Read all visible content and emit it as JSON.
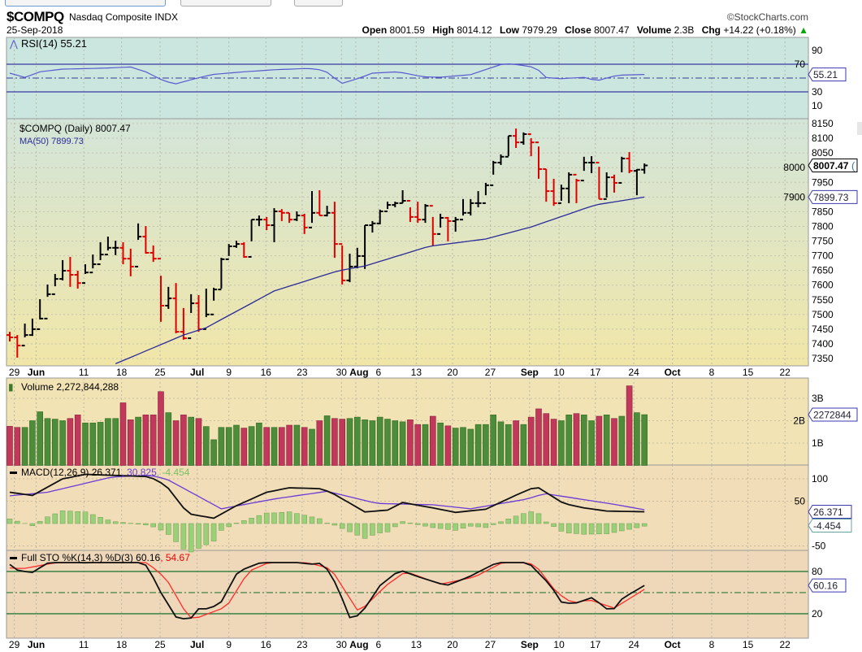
{
  "header": {
    "symbol": "$COMPQ",
    "name": "Nasdaq Composite INDX",
    "copyright": "©StockCharts.com",
    "date": "25-Sep-2018",
    "open_label": "Open",
    "open": "8001.59",
    "high_label": "High",
    "high": "8014.12",
    "low_label": "Low",
    "low": "7979.29",
    "close_label": "Close",
    "close": "8007.47",
    "volume_label": "Volume",
    "volume": "2.3B",
    "chg_label": "Chg",
    "chg": "+14.22 (+0.18%)",
    "chg_arrow": "▲"
  },
  "panels": {
    "rsi_label": "RSI(14) 55.21",
    "price_label": "$COMPQ (Daily) 8007.47",
    "ma_label": "MA(50) 7899.73",
    "volume_label": "Volume 2,272,844,288",
    "macd_label": "MACD(12,26,9) 26.371",
    "macd_signal": ", 30.825",
    "macd_hist": ", -4.454",
    "sto_label": "Full STO %K(14,3) %D(3) 60.16",
    "sto_d": ", 54.67"
  },
  "colors": {
    "up": "#000000",
    "down": "#e00000",
    "ma": "#2b2b9a",
    "rsi": "#5a5ad0",
    "vol_up": "#4c8c3a",
    "vol_down": "#c0385a",
    "macd": "#111111",
    "signal": "#6a3ad8",
    "hist": "#9ccf7a",
    "k": "#111111",
    "d": "#ff2a2a"
  },
  "chart_data": {
    "type": "ohlc",
    "title": "$COMPQ Nasdaq Composite INDX",
    "x_ticks": [
      {
        "label": "29",
        "bar": 1.6,
        "month": false
      },
      {
        "label": "Jun",
        "bar": 4.5,
        "month": true
      },
      {
        "label": "11",
        "bar": 10.8,
        "month": false
      },
      {
        "label": "18",
        "bar": 15.8,
        "month": false
      },
      {
        "label": "25",
        "bar": 20.9,
        "month": false
      },
      {
        "label": "Jul",
        "bar": 25.8,
        "month": true
      },
      {
        "label": "9",
        "bar": 30,
        "month": false
      },
      {
        "label": "16",
        "bar": 34.9,
        "month": false
      },
      {
        "label": "23",
        "bar": 39.7,
        "month": false
      },
      {
        "label": "30",
        "bar": 44.9,
        "month": false
      },
      {
        "label": "Aug",
        "bar": 46.8,
        "month": true
      },
      {
        "label": "6",
        "bar": 49.8,
        "month": false
      },
      {
        "label": "13",
        "bar": 54.8,
        "month": false
      },
      {
        "label": "20",
        "bar": 59.6,
        "month": false
      },
      {
        "label": "27",
        "bar": 64.6,
        "month": false
      },
      {
        "label": "Sep",
        "bar": 69.8,
        "month": true
      },
      {
        "label": "10",
        "bar": 73.7,
        "month": false
      },
      {
        "label": "17",
        "bar": 78.5,
        "month": false
      },
      {
        "label": "24",
        "bar": 83.6,
        "month": false
      },
      {
        "label": "Oct",
        "bar": 88.7,
        "month": true
      },
      {
        "label": "8",
        "bar": 93.9,
        "month": false
      },
      {
        "label": "15",
        "bar": 98.7,
        "month": false
      },
      {
        "label": "22",
        "bar": 103.6,
        "month": false
      }
    ],
    "price": {
      "ylim": [
        7335,
        8165
      ],
      "ticks": [
        "7350",
        "7400",
        "7450",
        "7500",
        "7550",
        "7600",
        "7650",
        "7700",
        "7750",
        "7800",
        "7850",
        "7900",
        "7950",
        "8000",
        "8050",
        "8100",
        "8150"
      ],
      "first_open": 7430,
      "hlc": [
        [
          7441,
          7408,
          7422
        ],
        [
          7430,
          7353,
          7394
        ],
        [
          7469,
          7422,
          7430
        ],
        [
          7486,
          7427,
          7450
        ],
        [
          7552,
          7483,
          7486
        ],
        [
          7602,
          7560,
          7569
        ],
        [
          7638,
          7596,
          7621
        ],
        [
          7685,
          7616,
          7649
        ],
        [
          7696,
          7594,
          7635
        ],
        [
          7649,
          7588,
          7607
        ],
        [
          7671,
          7638,
          7643
        ],
        [
          7704,
          7657,
          7671
        ],
        [
          7746,
          7685,
          7704
        ],
        [
          7765,
          7718,
          7727
        ],
        [
          7751,
          7702,
          7727
        ],
        [
          7746,
          7671,
          7690
        ],
        [
          7724,
          7630,
          7663
        ],
        [
          7810,
          7754,
          7765
        ],
        [
          7801,
          7707,
          7710
        ],
        [
          7735,
          7679,
          7690
        ],
        [
          7632,
          7475,
          7530
        ],
        [
          7594,
          7519,
          7555
        ],
        [
          7607,
          7436,
          7441
        ],
        [
          7522,
          7414,
          7419
        ],
        [
          7569,
          7505,
          7538
        ],
        [
          7566,
          7441,
          7450
        ],
        [
          7588,
          7491,
          7500
        ],
        [
          7591,
          7547,
          7585
        ],
        [
          7693,
          7588,
          7688
        ],
        [
          7740,
          7699,
          7732
        ],
        [
          7751,
          7727,
          7740
        ],
        [
          7746,
          7693,
          7696
        ],
        [
          7823,
          7749,
          7823
        ],
        [
          7837,
          7801,
          7823
        ],
        [
          7832,
          7787,
          7804
        ],
        [
          7862,
          7746,
          7851
        ],
        [
          7859,
          7818,
          7846
        ],
        [
          7846,
          7812,
          7823
        ],
        [
          7851,
          7818,
          7837
        ],
        [
          7843,
          7774,
          7796
        ],
        [
          7920,
          7812,
          7846
        ],
        [
          7923,
          7837,
          7837
        ],
        [
          7870,
          7834,
          7846
        ],
        [
          7884,
          7693,
          7740
        ],
        [
          7735,
          7602,
          7616
        ],
        [
          7707,
          7610,
          7663
        ],
        [
          7727,
          7657,
          7699
        ],
        [
          7804,
          7655,
          7804
        ],
        [
          7818,
          7779,
          7810
        ],
        [
          7857,
          7807,
          7851
        ],
        [
          7884,
          7859,
          7873
        ],
        [
          7884,
          7865,
          7879
        ],
        [
          7923,
          7879,
          7887
        ],
        [
          7865,
          7815,
          7832
        ],
        [
          7884,
          7812,
          7823
        ],
        [
          7876,
          7812,
          7870
        ],
        [
          7832,
          7732,
          7774
        ],
        [
          7843,
          7796,
          7829
        ],
        [
          7832,
          7749,
          7818
        ],
        [
          7832,
          7782,
          7823
        ],
        [
          7893,
          7837,
          7846
        ],
        [
          7893,
          7837,
          7879
        ],
        [
          7920,
          7865,
          7879
        ],
        [
          7948,
          7906,
          7940
        ],
        [
          8023,
          7976,
          8017
        ],
        [
          8045,
          8009,
          8037
        ],
        [
          8108,
          8039,
          8108
        ],
        [
          8133,
          8067,
          8086
        ],
        [
          8120,
          8078,
          8114
        ],
        [
          8100,
          8039,
          8086
        ],
        [
          8072,
          7962,
          7995
        ],
        [
          7995,
          7884,
          7920
        ],
        [
          7962,
          7870,
          7879
        ],
        [
          7942,
          7887,
          7929
        ],
        [
          7984,
          7879,
          7976
        ],
        [
          7962,
          7879,
          7956
        ],
        [
          8037,
          7989,
          8017
        ],
        [
          8039,
          7981,
          8017
        ],
        [
          8003,
          7893,
          7893
        ],
        [
          7984,
          7898,
          7967
        ],
        [
          7976,
          7915,
          7948
        ],
        [
          8037,
          7984,
          8031
        ],
        [
          8053,
          7981,
          7989
        ],
        [
          7995,
          7906,
          7993
        ],
        [
          8014.12,
          7979.29,
          8007.47
        ]
      ],
      "ma50_points": [
        [
          14.8,
          7330
        ],
        [
          24,
          7430
        ],
        [
          27,
          7455
        ],
        [
          36,
          7580
        ],
        [
          44.5,
          7649
        ],
        [
          48,
          7665
        ],
        [
          56.5,
          7732
        ],
        [
          64,
          7757
        ],
        [
          70,
          7798
        ],
        [
          78.5,
          7873
        ],
        [
          85,
          7899.73
        ]
      ],
      "last_badge": "8007.47",
      "ma_badge": "7899.73"
    },
    "rsi": {
      "ticks": [
        "90",
        "70",
        "30",
        "10"
      ],
      "points": [
        [
          1,
          57
        ],
        [
          3,
          51
        ],
        [
          5,
          59
        ],
        [
          8,
          63
        ],
        [
          12.6,
          64
        ],
        [
          17,
          66
        ],
        [
          19,
          59
        ],
        [
          21,
          48
        ],
        [
          22.8,
          41
        ],
        [
          25.5,
          49
        ],
        [
          27.7,
          55
        ],
        [
          32,
          59
        ],
        [
          36,
          62
        ],
        [
          40.6,
          64
        ],
        [
          42.7,
          61
        ],
        [
          44.9,
          42
        ],
        [
          47,
          49
        ],
        [
          49,
          57
        ],
        [
          52.4,
          59
        ],
        [
          55.6,
          52
        ],
        [
          57.8,
          51
        ],
        [
          62,
          55
        ],
        [
          64.2,
          63
        ],
        [
          66.4,
          71
        ],
        [
          68.5,
          69
        ],
        [
          70.7,
          65
        ],
        [
          71.8,
          51
        ],
        [
          73.9,
          49
        ],
        [
          77,
          51
        ],
        [
          78.7,
          46
        ],
        [
          81.4,
          54
        ],
        [
          85,
          55.21
        ]
      ],
      "badge": "55.21"
    },
    "volume": {
      "unit": "billions",
      "ticks": [
        "3B",
        "2B",
        "1B"
      ],
      "values": [
        1.75,
        1.7,
        1.7,
        2.0,
        2.4,
        2.1,
        2.07,
        2.0,
        2.1,
        2.26,
        1.9,
        1.9,
        1.93,
        2.1,
        2.1,
        2.8,
        2.04,
        2.16,
        2.26,
        2.26,
        3.3,
        2.36,
        2.0,
        2.26,
        2.16,
        2.1,
        1.74,
        1.15,
        1.7,
        1.7,
        1.8,
        1.67,
        1.74,
        1.9,
        1.7,
        1.7,
        1.7,
        1.8,
        1.8,
        1.7,
        1.62,
        2.0,
        2.22,
        2.1,
        2.07,
        2.1,
        2.16,
        2.04,
        2.0,
        2.16,
        2.07,
        2.0,
        1.95,
        2.04,
        1.83,
        1.83,
        2.2,
        1.9,
        1.77,
        1.67,
        1.7,
        1.62,
        1.83,
        1.83,
        2.26,
        1.95,
        1.83,
        2.0,
        1.83,
        2.16,
        2.53,
        2.32,
        2.07,
        2.0,
        2.26,
        2.32,
        2.26,
        2.0,
        2.2,
        2.26,
        2.1,
        2.2,
        3.56,
        2.36,
        2.27
      ],
      "badge": "2272844"
    },
    "macd": {
      "ticks": [
        "100",
        "50",
        "-50"
      ],
      "macd_points": [
        [
          1,
          70
        ],
        [
          4,
          63
        ],
        [
          8,
          100
        ],
        [
          11,
          110
        ],
        [
          19.5,
          105
        ],
        [
          21.7,
          85
        ],
        [
          24.6,
          22
        ],
        [
          28,
          12
        ],
        [
          31,
          40
        ],
        [
          35,
          70
        ],
        [
          38,
          80
        ],
        [
          42,
          78
        ],
        [
          43.5,
          70
        ],
        [
          48,
          26
        ],
        [
          51,
          30
        ],
        [
          53,
          47
        ],
        [
          57,
          35
        ],
        [
          60,
          25
        ],
        [
          64,
          32
        ],
        [
          67.8,
          62
        ],
        [
          70.7,
          83
        ],
        [
          74.3,
          45
        ],
        [
          77,
          35
        ],
        [
          80,
          28
        ],
        [
          85,
          26.371
        ]
      ],
      "signal_points": [
        [
          1,
          62
        ],
        [
          6,
          70
        ],
        [
          14.5,
          104
        ],
        [
          19.5,
          108
        ],
        [
          21.7,
          100
        ],
        [
          29,
          33
        ],
        [
          36,
          55
        ],
        [
          43,
          72
        ],
        [
          49.6,
          45
        ],
        [
          57,
          42
        ],
        [
          62,
          33
        ],
        [
          69.5,
          55
        ],
        [
          71.8,
          67
        ],
        [
          81,
          43
        ],
        [
          85,
          30.825
        ]
      ],
      "badge_macd": "26.371",
      "badge_hist": "-4.454"
    },
    "sto": {
      "ticks": [
        "80",
        "20"
      ],
      "k_points": [
        [
          1,
          90
        ],
        [
          2,
          82
        ],
        [
          3.9,
          78
        ],
        [
          5.4,
          88
        ],
        [
          6.8,
          97
        ],
        [
          9.4,
          96
        ],
        [
          11.2,
          92
        ],
        [
          13.4,
          96
        ],
        [
          17.4,
          96
        ],
        [
          19.2,
          88
        ],
        [
          21,
          50
        ],
        [
          23.2,
          12
        ],
        [
          25,
          14
        ],
        [
          26,
          27
        ],
        [
          27.5,
          27
        ],
        [
          29,
          37
        ],
        [
          31.2,
          80
        ],
        [
          34.8,
          95
        ],
        [
          37.7,
          97
        ],
        [
          40.6,
          90
        ],
        [
          42.5,
          92
        ],
        [
          44.3,
          60
        ],
        [
          46.1,
          12
        ],
        [
          47.5,
          20
        ],
        [
          50,
          60
        ],
        [
          52.6,
          82
        ],
        [
          55.2,
          72
        ],
        [
          58.8,
          60
        ],
        [
          61.7,
          72
        ],
        [
          66.1,
          96
        ],
        [
          69.7,
          92
        ],
        [
          72.6,
          60
        ],
        [
          74.1,
          35
        ],
        [
          75.9,
          35
        ],
        [
          78.1,
          43
        ],
        [
          80.6,
          22
        ],
        [
          82.1,
          42
        ],
        [
          85,
          60.16
        ]
      ],
      "d_points": [
        [
          1,
          85
        ],
        [
          2.8,
          84
        ],
        [
          6.8,
          92
        ],
        [
          18.8,
          96
        ],
        [
          21.7,
          70
        ],
        [
          24.7,
          14
        ],
        [
          26,
          15
        ],
        [
          29.7,
          30
        ],
        [
          32.6,
          80
        ],
        [
          36,
          96
        ],
        [
          40.6,
          92
        ],
        [
          43.5,
          84
        ],
        [
          47.2,
          22
        ],
        [
          50.8,
          60
        ],
        [
          53.4,
          80
        ],
        [
          58,
          62
        ],
        [
          62.5,
          72
        ],
        [
          66.8,
          96
        ],
        [
          70.5,
          90
        ],
        [
          73.4,
          50
        ],
        [
          75.5,
          35
        ],
        [
          77.7,
          40
        ],
        [
          81,
          28
        ],
        [
          85,
          54.67
        ]
      ],
      "badge": "60.16"
    }
  }
}
